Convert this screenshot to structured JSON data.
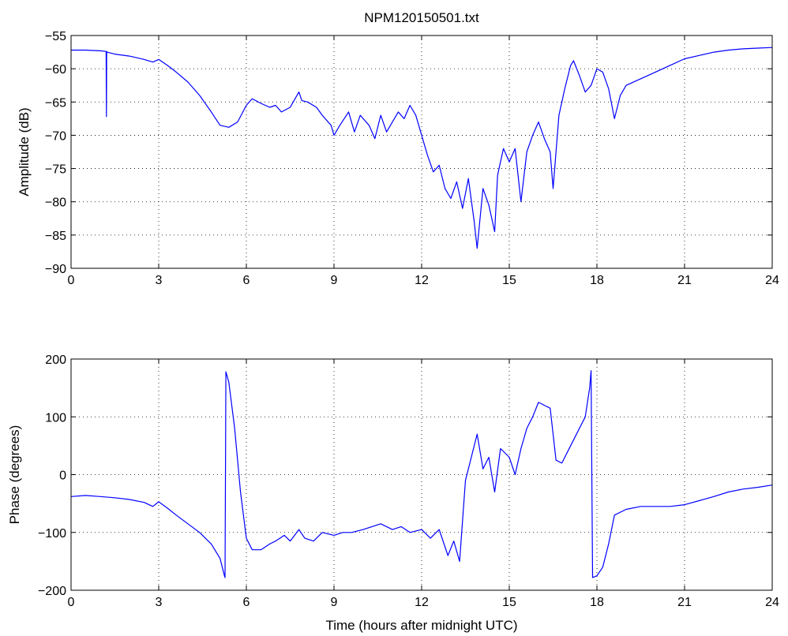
{
  "figure_title": "NPM120150501.txt",
  "chart_data": [
    {
      "type": "line",
      "title": "NPM120150501.txt",
      "xlabel": "",
      "ylabel": "Amplitude (dB)",
      "xlim": [
        0,
        24
      ],
      "ylim": [
        -90,
        -55
      ],
      "xticks": [
        0,
        3,
        6,
        9,
        12,
        15,
        18,
        21,
        24
      ],
      "xtick_labels": [
        "0",
        "3",
        "6",
        "9",
        "12",
        "15",
        "18",
        "21",
        "24"
      ],
      "yticks": [
        -55,
        -60,
        -65,
        -70,
        -75,
        -80,
        -85,
        -90
      ],
      "ytick_labels": [
        "−55",
        "−60",
        "−65",
        "−70",
        "−75",
        "−80",
        "−85",
        "−90"
      ],
      "grid": true,
      "color": "#0000ff",
      "series": [
        {
          "x": [
            0,
            0.5,
            1.0,
            1.2,
            1.21,
            1.22,
            1.23,
            1.5,
            2.0,
            2.5,
            2.8,
            3.0,
            3.3,
            3.6,
            4.0,
            4.4,
            4.8,
            5.1,
            5.4,
            5.7,
            6.0,
            6.2,
            6.5,
            6.8,
            7.0,
            7.2,
            7.5,
            7.8,
            7.9,
            8.1,
            8.4,
            8.6,
            8.9,
            9.0,
            9.2,
            9.5,
            9.7,
            9.9,
            10.2,
            10.4,
            10.6,
            10.8,
            11.0,
            11.2,
            11.4,
            11.6,
            11.8,
            12.0,
            12.2,
            12.4,
            12.6,
            12.8,
            13.0,
            13.2,
            13.4,
            13.6,
            13.8,
            13.9,
            14.1,
            14.3,
            14.5,
            14.6,
            14.8,
            15.0,
            15.2,
            15.4,
            15.6,
            15.8,
            16.0,
            16.2,
            16.4,
            16.5,
            16.7,
            16.9,
            17.1,
            17.2,
            17.4,
            17.6,
            17.8,
            18.0,
            18.2,
            18.4,
            18.6,
            18.8,
            19.0,
            19.5,
            20.0,
            20.5,
            21.0,
            21.5,
            22.0,
            22.5,
            23.0,
            23.5,
            24.0
          ],
          "y": [
            -57.2,
            -57.2,
            -57.3,
            -57.4,
            -67.2,
            -57.4,
            -57.5,
            -57.8,
            -58.1,
            -58.6,
            -59.0,
            -58.6,
            -59.5,
            -60.5,
            -62.0,
            -64.0,
            -66.5,
            -68.5,
            -68.8,
            -68.0,
            -65.5,
            -64.5,
            -65.2,
            -65.8,
            -65.5,
            -66.5,
            -65.8,
            -63.5,
            -64.8,
            -65.0,
            -65.8,
            -67.0,
            -68.5,
            -70.0,
            -68.5,
            -66.5,
            -69.5,
            -67.0,
            -68.5,
            -70.5,
            -67.0,
            -69.5,
            -68.0,
            -66.5,
            -67.5,
            -65.5,
            -67.0,
            -70.0,
            -73.0,
            -75.5,
            -74.5,
            -78.0,
            -79.5,
            -77.0,
            -81.0,
            -76.5,
            -83.0,
            -87.0,
            -78.0,
            -80.5,
            -84.5,
            -76.0,
            -72.0,
            -74.0,
            -72.0,
            -80.0,
            -72.5,
            -70.0,
            -68.0,
            -70.5,
            -72.5,
            -78.0,
            -67.0,
            -63.0,
            -59.5,
            -58.8,
            -61.0,
            -63.5,
            -62.5,
            -60.0,
            -60.5,
            -63.0,
            -67.5,
            -64.0,
            -62.5,
            -61.5,
            -60.5,
            -59.5,
            -58.5,
            -58.0,
            -57.5,
            -57.2,
            -57.0,
            -56.9,
            -56.8
          ]
        }
      ]
    },
    {
      "type": "line",
      "title": "",
      "xlabel": "Time (hours after midnight UTC)",
      "ylabel": "Phase (degrees)",
      "xlim": [
        0,
        24
      ],
      "ylim": [
        -200,
        200
      ],
      "xticks": [
        0,
        3,
        6,
        9,
        12,
        15,
        18,
        21,
        24
      ],
      "xtick_labels": [
        "0",
        "3",
        "6",
        "9",
        "12",
        "15",
        "18",
        "21",
        "24"
      ],
      "yticks": [
        200,
        100,
        0,
        -100,
        -200
      ],
      "ytick_labels": [
        "200",
        "100",
        "0",
        "−100",
        "−200"
      ],
      "grid": true,
      "color": "#0000ff",
      "series": [
        {
          "x": [
            0,
            0.5,
            1.0,
            1.5,
            2.0,
            2.5,
            2.8,
            3.0,
            3.3,
            3.6,
            4.0,
            4.4,
            4.8,
            5.1,
            5.25,
            5.27,
            5.3,
            5.4,
            5.6,
            5.8,
            6.0,
            6.2,
            6.5,
            6.8,
            7.0,
            7.3,
            7.5,
            7.8,
            8.0,
            8.3,
            8.6,
            9.0,
            9.3,
            9.6,
            10.0,
            10.3,
            10.6,
            11.0,
            11.3,
            11.6,
            12.0,
            12.3,
            12.6,
            12.9,
            13.1,
            13.3,
            13.5,
            13.7,
            13.9,
            14.1,
            14.3,
            14.5,
            14.7,
            15.0,
            15.2,
            15.4,
            15.6,
            15.8,
            16.0,
            16.2,
            16.4,
            16.6,
            16.8,
            17.0,
            17.3,
            17.6,
            17.75,
            17.8,
            17.85,
            18.0,
            18.2,
            18.4,
            18.6,
            19.0,
            19.5,
            20.0,
            20.5,
            21.0,
            21.5,
            22.0,
            22.5,
            23.0,
            23.5,
            24.0
          ],
          "y": [
            -38,
            -36,
            -38,
            -40,
            -43,
            -48,
            -55,
            -47,
            -58,
            -70,
            -85,
            -100,
            -120,
            -145,
            -175,
            -178,
            178,
            160,
            80,
            -30,
            -110,
            -130,
            -130,
            -120,
            -115,
            -105,
            -115,
            -95,
            -110,
            -115,
            -100,
            -105,
            -100,
            -100,
            -95,
            -90,
            -85,
            -95,
            -90,
            -100,
            -95,
            -110,
            -95,
            -140,
            -115,
            -150,
            -10,
            30,
            70,
            10,
            30,
            -30,
            45,
            30,
            0,
            45,
            80,
            100,
            125,
            120,
            115,
            25,
            20,
            40,
            70,
            100,
            150,
            180,
            -178,
            -175,
            -160,
            -120,
            -70,
            -60,
            -55,
            -55,
            -55,
            -52,
            -45,
            -38,
            -30,
            -25,
            -22,
            -18
          ]
        }
      ]
    }
  ]
}
